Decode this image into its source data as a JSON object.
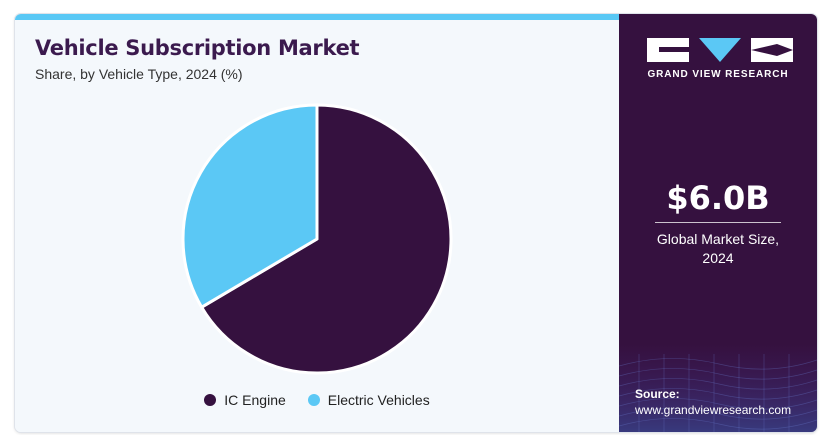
{
  "colors": {
    "accent_bar": "#59c8f5",
    "panel_dark": "#35113f",
    "ic_engine": "#35113f",
    "electric": "#5bc8f5",
    "title": "#3b1a4e"
  },
  "header": {
    "title": "Vehicle Subscription Market",
    "subtitle": "Share, by Vehicle Type, 2024 (%)"
  },
  "chart_data": {
    "type": "pie",
    "title": "Vehicle Subscription Market",
    "subtitle": "Share, by Vehicle Type, 2024 (%)",
    "categories": [
      "IC Engine",
      "Electric Vehicles"
    ],
    "values": [
      66.5,
      33.5
    ],
    "legend_position": "bottom"
  },
  "legend": {
    "items": [
      {
        "label": "IC Engine",
        "color": "#35113f"
      },
      {
        "label": "Electric Vehicles",
        "color": "#5bc8f5"
      }
    ]
  },
  "side_panel": {
    "brand": "GRAND VIEW RESEARCH",
    "logo_icon": "gvr-logo-icon",
    "kpi_value": "$6.0B",
    "kpi_label_line1": "Global Market Size,",
    "kpi_label_line2": "2024",
    "source_label": "Source:",
    "source_url": "www.grandviewresearch.com"
  }
}
